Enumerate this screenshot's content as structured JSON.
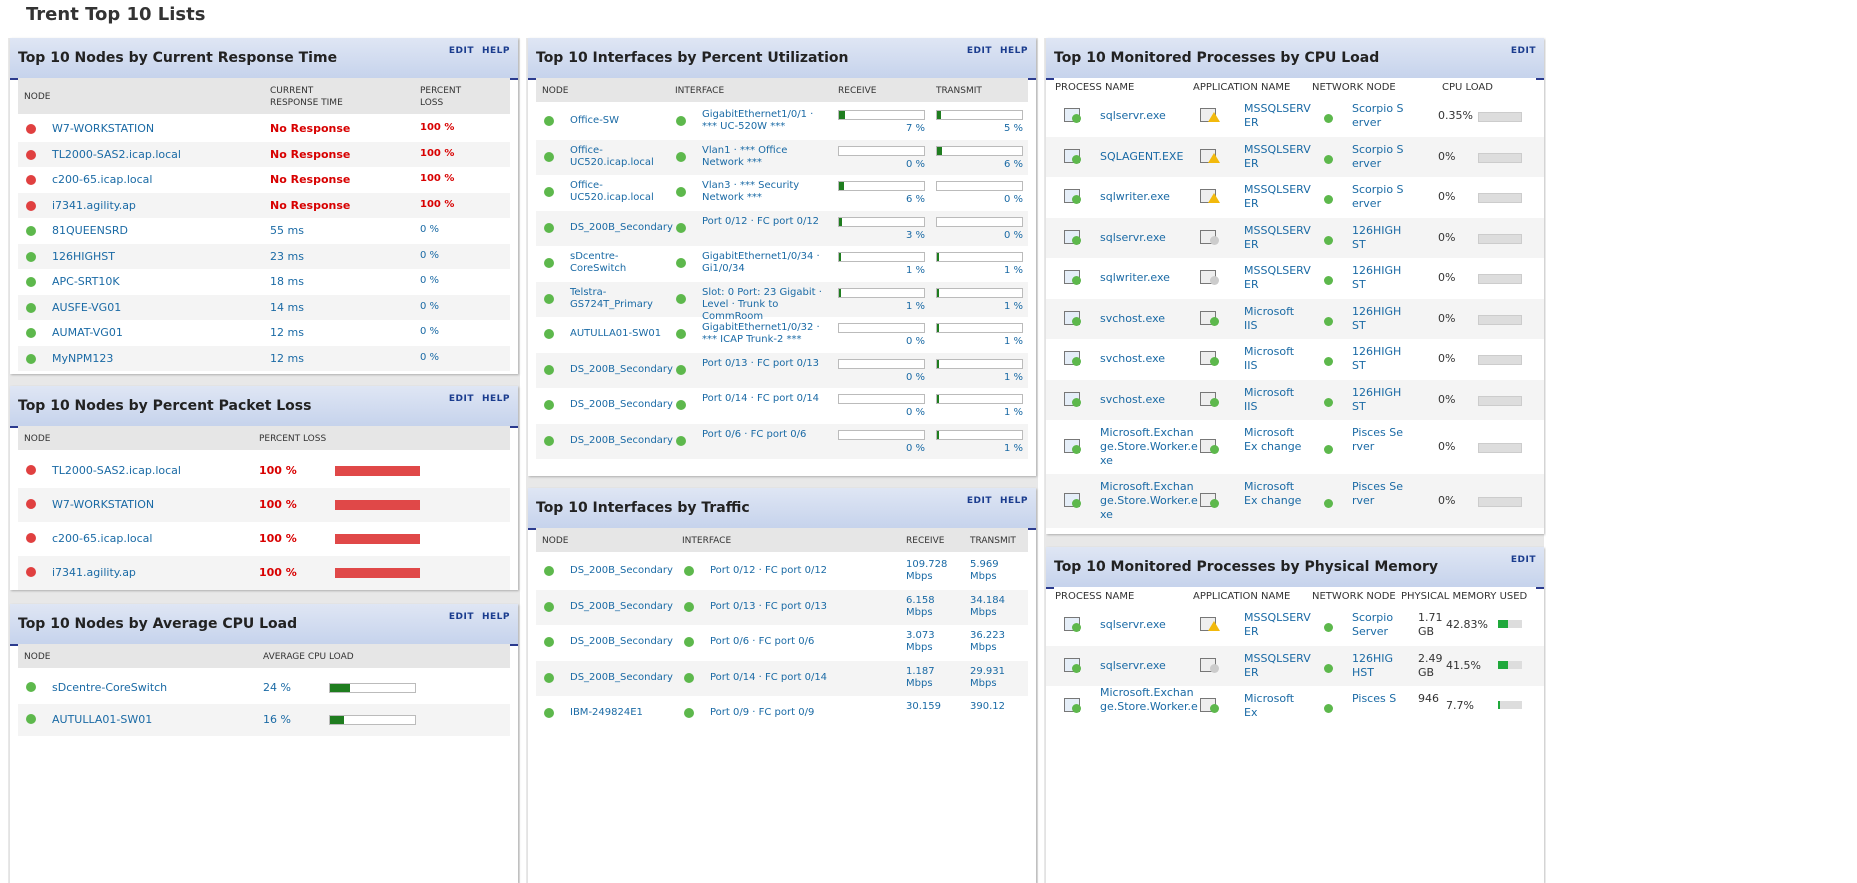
{
  "page": {
    "title": "Trent Top 10 Lists"
  },
  "panels": {
    "response": {
      "title": "Top 10 Nodes by Current Response Time",
      "edit": "EDIT",
      "help": "HELP",
      "cols": {
        "node": "NODE",
        "rt1": "CURRENT",
        "rt2": "RESPONSE TIME",
        "pl1": "PERCENT",
        "pl2": "LOSS"
      },
      "rows": [
        {
          "node": "W7-WORKSTATION",
          "rt": "No Response",
          "loss": "100 %",
          "status": "r"
        },
        {
          "node": "TL2000-SAS2.icap.local",
          "rt": "No Response",
          "loss": "100 %",
          "status": "r"
        },
        {
          "node": "c200-65.icap.local",
          "rt": "No Response",
          "loss": "100 %",
          "status": "r"
        },
        {
          "node": "i7341.agility.ap",
          "rt": "No Response",
          "loss": "100 %",
          "status": "r"
        },
        {
          "node": "81QUEENSRD",
          "rt": "55 ms",
          "loss": "0 %",
          "status": "g"
        },
        {
          "node": "126HIGHST",
          "rt": "23 ms",
          "loss": "0 %",
          "status": "g"
        },
        {
          "node": "APC-SRT10K",
          "rt": "18 ms",
          "loss": "0 %",
          "status": "g"
        },
        {
          "node": "AUSFE-VG01",
          "rt": "14 ms",
          "loss": "0 %",
          "status": "g"
        },
        {
          "node": "AUMAT-VG01",
          "rt": "12 ms",
          "loss": "0 %",
          "status": "g"
        },
        {
          "node": "MyNPM123",
          "rt": "12 ms",
          "loss": "0 %",
          "status": "g"
        }
      ]
    },
    "packetloss": {
      "title": "Top 10 Nodes by Percent Packet Loss",
      "edit": "EDIT",
      "help": "HELP",
      "cols": {
        "node": "NODE",
        "loss": "PERCENT LOSS"
      },
      "rows": [
        {
          "node": "TL2000-SAS2.icap.local",
          "loss": "100 %",
          "pct": 100
        },
        {
          "node": "W7-WORKSTATION",
          "loss": "100 %",
          "pct": 100
        },
        {
          "node": "c200-65.icap.local",
          "loss": "100 %",
          "pct": 100
        },
        {
          "node": "i7341.agility.ap",
          "loss": "100 %",
          "pct": 100
        }
      ]
    },
    "cpu": {
      "title": "Top 10 Nodes by Average CPU Load",
      "edit": "EDIT",
      "help": "HELP",
      "cols": {
        "node": "NODE",
        "load": "AVERAGE CPU LOAD"
      },
      "rows": [
        {
          "node": "sDcentre-CoreSwitch",
          "load": "24 %",
          "pct": 24
        },
        {
          "node": "AUTULLA01-SW01",
          "load": "16 %",
          "pct": 16
        }
      ]
    },
    "util": {
      "title": "Top 10 Interfaces by Percent Utilization",
      "edit": "EDIT",
      "help": "HELP",
      "cols": {
        "node": "NODE",
        "iface": "INTERFACE",
        "rx": "RECEIVE",
        "tx": "TRANSMIT"
      },
      "rows": [
        {
          "node": "Office-SW",
          "iface": "GigabitEthernet1/0/1 · *** UC-520W ***",
          "rx": "7 %",
          "rxp": 7,
          "tx": "5 %",
          "txp": 5
        },
        {
          "node": "Office-UC520.icap.local",
          "iface": "Vlan1 · *** Office Network ***",
          "rx": "0 %",
          "rxp": 0,
          "tx": "6 %",
          "txp": 6
        },
        {
          "node": "Office-UC520.icap.local",
          "iface": "Vlan3 · *** Security Network ***",
          "rx": "6 %",
          "rxp": 6,
          "tx": "0 %",
          "txp": 0
        },
        {
          "node": "DS_200B_Secondary",
          "iface": "Port 0/12 · FC port 0/12",
          "rx": "3 %",
          "rxp": 3,
          "tx": "0 %",
          "txp": 0
        },
        {
          "node": "sDcentre-CoreSwitch",
          "iface": "GigabitEthernet1/0/34 · Gi1/0/34",
          "rx": "1 %",
          "rxp": 1,
          "tx": "1 %",
          "txp": 1
        },
        {
          "node": "Telstra-GS724T_Primary",
          "iface": "Slot: 0 Port: 23 Gigabit · Level · Trunk to CommRoom",
          "rx": "1 %",
          "rxp": 1,
          "tx": "1 %",
          "txp": 1
        },
        {
          "node": "AUTULLA01-SW01",
          "iface": "GigabitEthernet1/0/32 · *** ICAP Trunk-2 ***",
          "rx": "0 %",
          "rxp": 0,
          "tx": "1 %",
          "txp": 1
        },
        {
          "node": "DS_200B_Secondary",
          "iface": "Port 0/13 · FC port 0/13",
          "rx": "0 %",
          "rxp": 0,
          "tx": "1 %",
          "txp": 1
        },
        {
          "node": "DS_200B_Secondary",
          "iface": "Port 0/14 · FC port 0/14",
          "rx": "0 %",
          "rxp": 0,
          "tx": "1 %",
          "txp": 1
        },
        {
          "node": "DS_200B_Secondary",
          "iface": "Port 0/6 · FC port 0/6",
          "rx": "0 %",
          "rxp": 0,
          "tx": "1 %",
          "txp": 1
        }
      ]
    },
    "traffic": {
      "title": "Top 10 Interfaces by Traffic",
      "edit": "EDIT",
      "help": "HELP",
      "cols": {
        "node": "NODE",
        "iface": "INTERFACE",
        "rx": "RECEIVE",
        "tx": "TRANSMIT"
      },
      "rows": [
        {
          "node": "DS_200B_Secondary",
          "iface": "Port 0/12 · FC port 0/12",
          "rx": "109.728 Mbps",
          "tx": "5.969 Mbps"
        },
        {
          "node": "DS_200B_Secondary",
          "iface": "Port 0/13 · FC port 0/13",
          "rx": "6.158 Mbps",
          "tx": "34.184 Mbps"
        },
        {
          "node": "DS_200B_Secondary",
          "iface": "Port 0/6 · FC port 0/6",
          "rx": "3.073 Mbps",
          "tx": "36.223 Mbps"
        },
        {
          "node": "DS_200B_Secondary",
          "iface": "Port 0/14 · FC port 0/14",
          "rx": "1.187 Mbps",
          "tx": "29.931 Mbps"
        },
        {
          "node": "IBM-249824E1",
          "iface": "Port 0/9 · FC port 0/9",
          "rx": "30.159",
          "tx": "390.12"
        }
      ]
    },
    "proccpu": {
      "title": "Top 10 Monitored Processes by CPU Load",
      "edit": "EDIT",
      "cols": {
        "proc": "PROCESS NAME",
        "app": "APPLICATION NAME",
        "nn": "NETWORK NODE",
        "load": "CPU LOAD"
      },
      "rows": [
        {
          "proc": "sqlservr.exe",
          "app": "MSSQLSERV ER",
          "node": "Scorpio S erver",
          "load": "0.35%",
          "warn": true
        },
        {
          "proc": "SQLAGENT.EXE",
          "app": "MSSQLSERV ER",
          "node": "Scorpio S erver",
          "load": "0%",
          "warn": true
        },
        {
          "proc": "sqlwriter.exe",
          "app": "MSSQLSERV ER",
          "node": "Scorpio S erver",
          "load": "0%",
          "warn": true
        },
        {
          "proc": "sqlservr.exe",
          "app": "MSSQLSERV ER",
          "node": "126HIGH ST",
          "load": "0%",
          "warn": false
        },
        {
          "proc": "sqlwriter.exe",
          "app": "MSSQLSERV ER",
          "node": "126HIGH ST",
          "load": "0%",
          "warn": false
        },
        {
          "proc": "svchost.exe",
          "app": "Microsoft IIS",
          "node": "126HIGH ST",
          "load": "0%",
          "warn": false
        },
        {
          "proc": "svchost.exe",
          "app": "Microsoft IIS",
          "node": "126HIGH ST",
          "load": "0%",
          "warn": false
        },
        {
          "proc": "svchost.exe",
          "app": "Microsoft IIS",
          "node": "126HIGH ST",
          "load": "0%",
          "warn": false
        },
        {
          "proc": "Microsoft.Exchan ge.Store.Worker.e xe",
          "app": "Microsoft Ex change",
          "node": "Pisces Se rver",
          "load": "0%",
          "warn": false
        },
        {
          "proc": "Microsoft.Exchan ge.Store.Worker.e xe",
          "app": "Microsoft Ex change",
          "node": "Pisces Se rver",
          "load": "0%",
          "warn": false
        }
      ]
    },
    "procmem": {
      "title": "Top 10 Monitored Processes by Physical Memory",
      "edit": "EDIT",
      "cols": {
        "proc": "PROCESS NAME",
        "app": "APPLICATION NAME",
        "nn": "NETWORK NODE",
        "mem": "PHYSICAL MEMORY USED"
      },
      "rows": [
        {
          "proc": "sqlservr.exe",
          "app": "MSSQLSERV ER",
          "node": "Scorpio Server",
          "mem": "1.71 GB",
          "pct": "42.83%",
          "p": 42.83,
          "warn": true
        },
        {
          "proc": "sqlservr.exe",
          "app": "MSSQLSERV ER",
          "node": "126HIG HST",
          "mem": "2.49 GB",
          "pct": "41.5%",
          "p": 41.5,
          "warn": false
        },
        {
          "proc": "Microsoft.Exchan ge.Store.Worker.e",
          "app": "Microsoft Ex",
          "node": "Pisces S",
          "mem": "946",
          "pct": "7.7%",
          "p": 7.7,
          "warn": false
        }
      ]
    }
  }
}
